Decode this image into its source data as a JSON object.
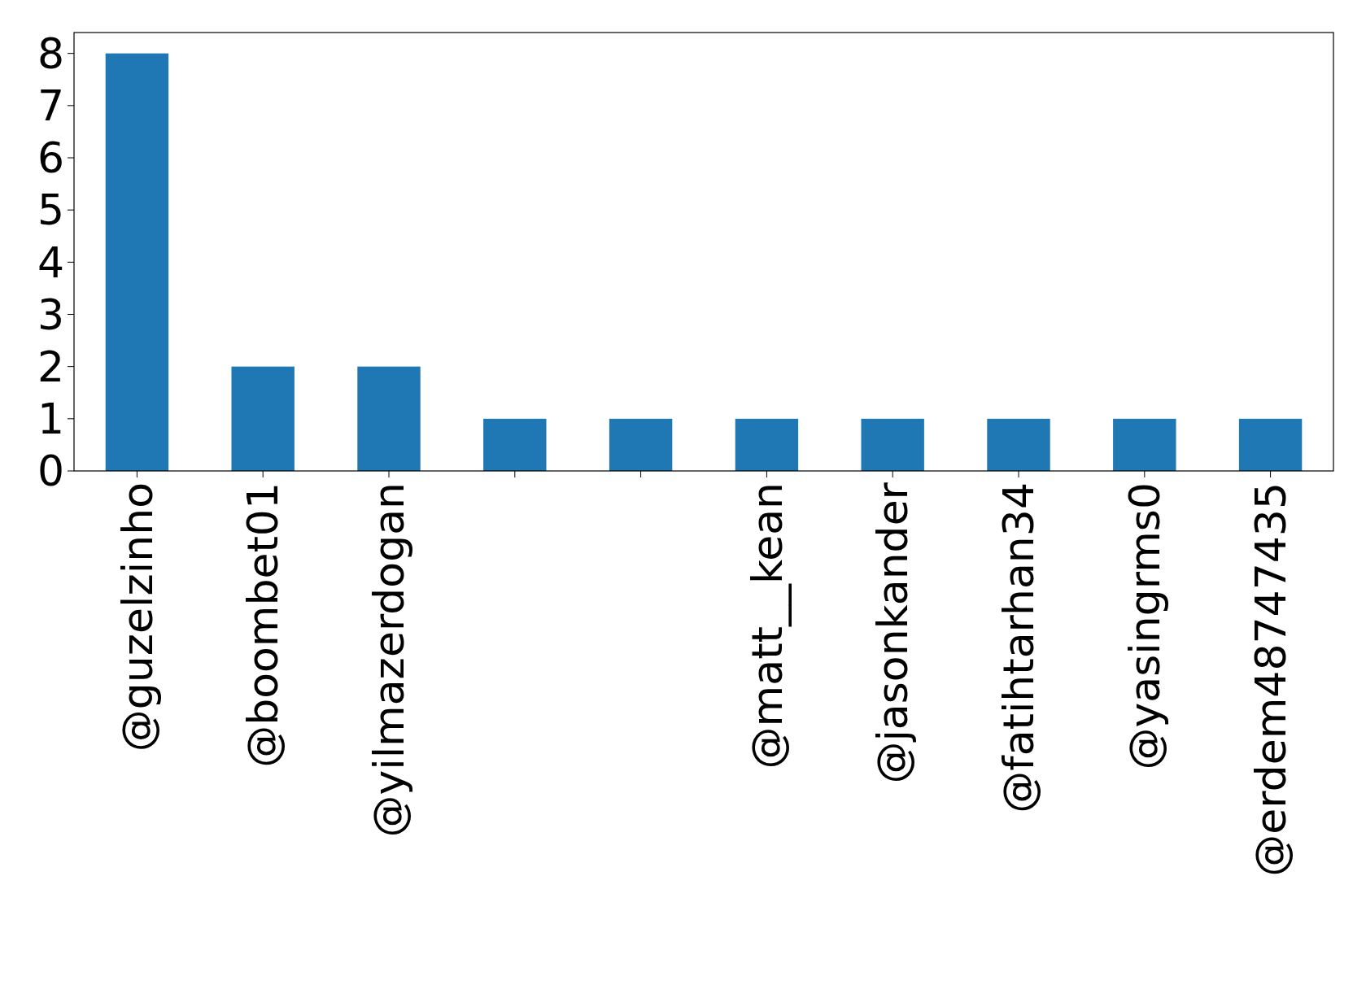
{
  "chart_data": {
    "type": "bar",
    "categories": [
      "@guzelzinho",
      "@boombet01",
      "@yilmazerdogan",
      null,
      null,
      "@matt__kean",
      "@jasonkander",
      "@fatihtarhan34",
      "@yasingrms0",
      "@erdem48747435"
    ],
    "values": [
      8,
      2,
      2,
      1,
      1,
      1,
      1,
      1,
      1,
      1
    ],
    "color": "#1f77b4",
    "ylim": [
      0,
      8.4
    ],
    "yticks": [
      0,
      1,
      2,
      3,
      4,
      5,
      6,
      7,
      8
    ],
    "grid": false
  }
}
